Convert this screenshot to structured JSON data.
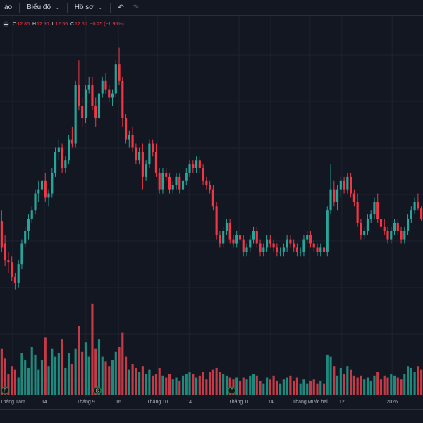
{
  "toolbar": {
    "items": [
      {
        "label": "áo",
        "chevron": false
      },
      {
        "label": "Biểu đồ",
        "chevron": true
      },
      {
        "label": "Hồ sơ",
        "chevron": true
      }
    ],
    "undo_icon": "undo-icon",
    "redo_icon": "redo-icon"
  },
  "legend": {
    "o_key": "O",
    "o_val": "12.85",
    "h_key": "H",
    "h_val": "12.90",
    "l_key": "L",
    "l_val": "12.55",
    "c_key": "C",
    "c_val": "12.60",
    "change": "−0.25 (−1.96%)"
  },
  "colors": {
    "background": "#131722",
    "grid": "#1f2330",
    "up": "#26a69a",
    "down": "#f23645",
    "up_volume": "#1e8a7e",
    "down_volume": "#c43a47",
    "event_badge": "#2e7d32"
  },
  "xaxis_labels": [
    {
      "label": "Tháng Tám",
      "pos": 0.03
    },
    {
      "label": "14",
      "pos": 0.105
    },
    {
      "label": "Tháng 9",
      "pos": 0.203
    },
    {
      "label": "16",
      "pos": 0.28
    },
    {
      "label": "Tháng 10",
      "pos": 0.372
    },
    {
      "label": "14",
      "pos": 0.447
    },
    {
      "label": "Tháng 11",
      "pos": 0.565
    },
    {
      "label": "14",
      "pos": 0.64
    },
    {
      "label": "Tháng Mười hai",
      "pos": 0.733
    },
    {
      "label": "12",
      "pos": 0.808
    },
    {
      "label": "2026",
      "pos": 0.927
    }
  ],
  "event_badges": [
    {
      "letter": "F",
      "pos": 0.012
    },
    {
      "letter": "S",
      "pos": 0.23
    },
    {
      "letter": "F",
      "pos": 0.548
    }
  ],
  "chart_data": {
    "type": "candlestick",
    "price_range": [
      10.2,
      17.3
    ],
    "volume_range": [
      0,
      100
    ],
    "candles": [
      [
        12.55,
        12.8,
        11.8,
        11.9,
        48
      ],
      [
        12.0,
        12.2,
        11.45,
        11.6,
        38
      ],
      [
        11.6,
        11.8,
        11.3,
        11.55,
        22
      ],
      [
        11.55,
        11.7,
        11.1,
        11.2,
        30
      ],
      [
        11.2,
        11.3,
        10.9,
        11.05,
        26
      ],
      [
        11.05,
        11.6,
        10.95,
        11.5,
        18
      ],
      [
        11.5,
        12.1,
        11.4,
        12.0,
        44
      ],
      [
        12.0,
        12.4,
        11.9,
        12.3,
        36
      ],
      [
        12.3,
        12.7,
        12.1,
        12.6,
        28
      ],
      [
        12.6,
        12.9,
        12.5,
        12.8,
        50
      ],
      [
        12.8,
        13.3,
        12.7,
        13.2,
        42
      ],
      [
        13.2,
        13.5,
        13.0,
        13.3,
        26
      ],
      [
        13.3,
        13.6,
        13.1,
        13.5,
        36
      ],
      [
        13.5,
        13.7,
        13.0,
        13.1,
        60
      ],
      [
        13.1,
        13.3,
        12.9,
        13.2,
        30
      ],
      [
        13.2,
        13.8,
        13.1,
        13.7,
        48
      ],
      [
        13.7,
        14.3,
        13.6,
        14.2,
        40
      ],
      [
        14.2,
        14.5,
        14.0,
        14.3,
        44
      ],
      [
        14.3,
        14.4,
        13.7,
        13.8,
        58
      ],
      [
        13.8,
        14.1,
        13.7,
        14.0,
        28
      ],
      [
        14.0,
        14.6,
        13.9,
        14.5,
        44
      ],
      [
        14.5,
        14.8,
        14.3,
        14.4,
        32
      ],
      [
        14.4,
        15.9,
        14.3,
        15.8,
        48
      ],
      [
        15.8,
        16.4,
        15.2,
        15.3,
        72
      ],
      [
        15.3,
        15.5,
        14.8,
        15.0,
        45
      ],
      [
        15.0,
        15.8,
        14.9,
        15.7,
        55
      ],
      [
        15.7,
        16.0,
        15.6,
        15.8,
        40
      ],
      [
        15.8,
        16.0,
        15.2,
        15.3,
        95
      ],
      [
        15.3,
        15.5,
        14.8,
        15.0,
        48
      ],
      [
        15.0,
        15.7,
        14.9,
        15.6,
        58
      ],
      [
        15.6,
        16.0,
        15.5,
        15.9,
        40
      ],
      [
        15.9,
        16.1,
        15.6,
        15.7,
        35
      ],
      [
        15.7,
        15.8,
        15.4,
        15.5,
        30
      ],
      [
        15.5,
        15.7,
        15.3,
        15.6,
        36
      ],
      [
        15.6,
        16.4,
        15.5,
        16.3,
        45
      ],
      [
        16.3,
        16.7,
        15.8,
        15.9,
        50
      ],
      [
        15.9,
        16.0,
        14.8,
        15.0,
        65
      ],
      [
        15.0,
        15.1,
        14.4,
        14.5,
        40
      ],
      [
        14.5,
        14.7,
        14.3,
        14.6,
        26
      ],
      [
        14.6,
        14.8,
        14.2,
        14.3,
        32
      ],
      [
        14.3,
        14.4,
        13.9,
        14.0,
        28
      ],
      [
        14.0,
        14.3,
        13.9,
        14.2,
        24
      ],
      [
        14.2,
        14.4,
        13.3,
        13.6,
        30
      ],
      [
        13.6,
        14.0,
        13.5,
        13.9,
        22
      ],
      [
        13.9,
        14.5,
        13.8,
        14.4,
        26
      ],
      [
        14.4,
        14.5,
        14.1,
        14.2,
        20
      ],
      [
        14.2,
        14.4,
        13.6,
        13.7,
        22
      ],
      [
        13.7,
        13.8,
        13.2,
        13.3,
        28
      ],
      [
        13.3,
        13.8,
        13.2,
        13.7,
        20
      ],
      [
        13.7,
        13.8,
        13.5,
        13.6,
        18
      ],
      [
        13.6,
        13.7,
        13.2,
        13.3,
        22
      ],
      [
        13.3,
        13.5,
        13.2,
        13.4,
        16
      ],
      [
        13.4,
        13.7,
        13.3,
        13.6,
        18
      ],
      [
        13.6,
        13.7,
        13.2,
        13.3,
        14
      ],
      [
        13.3,
        13.6,
        13.2,
        13.5,
        20
      ],
      [
        13.5,
        13.8,
        13.4,
        13.7,
        22
      ],
      [
        13.7,
        14.0,
        13.6,
        13.9,
        24
      ],
      [
        13.9,
        14.0,
        13.7,
        13.8,
        22
      ],
      [
        13.8,
        14.1,
        13.7,
        14.0,
        18
      ],
      [
        14.0,
        14.1,
        13.7,
        13.8,
        20
      ],
      [
        13.8,
        13.9,
        13.4,
        13.5,
        24
      ],
      [
        13.5,
        13.6,
        13.3,
        13.4,
        16
      ],
      [
        13.4,
        13.5,
        13.2,
        13.3,
        24
      ],
      [
        13.3,
        13.4,
        12.8,
        12.9,
        26
      ],
      [
        12.9,
        13.0,
        12.1,
        12.2,
        28
      ],
      [
        12.2,
        12.3,
        11.9,
        12.0,
        24
      ],
      [
        12.0,
        12.4,
        11.9,
        12.3,
        22
      ],
      [
        12.3,
        12.6,
        12.2,
        12.5,
        20
      ],
      [
        12.5,
        12.6,
        12.0,
        12.1,
        18
      ],
      [
        12.1,
        12.2,
        11.9,
        12.0,
        16
      ],
      [
        12.0,
        12.3,
        11.9,
        12.2,
        18
      ],
      [
        12.2,
        12.4,
        12.0,
        12.1,
        14
      ],
      [
        12.1,
        12.2,
        11.7,
        11.8,
        18
      ],
      [
        11.8,
        12.0,
        11.7,
        11.9,
        16
      ],
      [
        11.9,
        12.2,
        11.8,
        12.1,
        20
      ],
      [
        12.1,
        12.4,
        12.0,
        12.3,
        22
      ],
      [
        12.3,
        12.4,
        11.9,
        12.0,
        20
      ],
      [
        12.0,
        12.1,
        11.7,
        11.8,
        14
      ],
      [
        11.8,
        12.0,
        11.7,
        11.9,
        12
      ],
      [
        11.9,
        12.2,
        11.8,
        12.1,
        18
      ],
      [
        12.1,
        12.2,
        11.9,
        12.0,
        16
      ],
      [
        12.0,
        12.1,
        11.8,
        11.9,
        20
      ],
      [
        11.9,
        12.0,
        11.7,
        11.8,
        14
      ],
      [
        11.8,
        11.9,
        11.7,
        11.8,
        12
      ],
      [
        11.8,
        12.0,
        11.7,
        11.9,
        16
      ],
      [
        11.9,
        12.2,
        11.8,
        12.1,
        18
      ],
      [
        12.1,
        12.2,
        11.9,
        12.0,
        20
      ],
      [
        12.0,
        12.1,
        11.8,
        11.9,
        14
      ],
      [
        11.9,
        12.0,
        11.7,
        11.8,
        18
      ],
      [
        11.8,
        11.9,
        11.7,
        11.8,
        12
      ],
      [
        11.8,
        12.2,
        11.7,
        12.1,
        16
      ],
      [
        12.1,
        12.3,
        12.0,
        12.2,
        12
      ],
      [
        12.2,
        12.3,
        11.9,
        12.0,
        14
      ],
      [
        12.0,
        12.1,
        11.8,
        11.9,
        16
      ],
      [
        11.9,
        12.0,
        11.7,
        11.8,
        12
      ],
      [
        11.8,
        12.0,
        11.7,
        11.9,
        14
      ],
      [
        11.9,
        12.1,
        11.8,
        11.8,
        12
      ],
      [
        11.8,
        12.9,
        11.7,
        12.8,
        42
      ],
      [
        12.8,
        13.9,
        12.7,
        13.3,
        40
      ],
      [
        13.3,
        13.5,
        12.9,
        13.0,
        30
      ],
      [
        13.0,
        13.4,
        12.8,
        13.3,
        20
      ],
      [
        13.3,
        13.6,
        13.1,
        13.5,
        28
      ],
      [
        13.5,
        13.6,
        13.2,
        13.3,
        22
      ],
      [
        13.3,
        13.7,
        13.2,
        13.6,
        30
      ],
      [
        13.6,
        13.7,
        13.1,
        13.2,
        26
      ],
      [
        13.2,
        13.3,
        12.9,
        13.0,
        20
      ],
      [
        13.0,
        13.2,
        12.4,
        12.5,
        18
      ],
      [
        12.5,
        12.6,
        12.1,
        12.2,
        20
      ],
      [
        12.2,
        12.4,
        12.1,
        12.3,
        16
      ],
      [
        12.3,
        12.7,
        12.2,
        12.6,
        18
      ],
      [
        12.6,
        12.8,
        12.5,
        12.7,
        14
      ],
      [
        12.7,
        13.1,
        12.6,
        13.0,
        20
      ],
      [
        13.0,
        13.2,
        12.5,
        12.6,
        24
      ],
      [
        12.6,
        12.7,
        12.3,
        12.4,
        16
      ],
      [
        12.4,
        12.6,
        12.2,
        12.3,
        20
      ],
      [
        12.3,
        12.4,
        12.0,
        12.1,
        18
      ],
      [
        12.1,
        12.4,
        12.0,
        12.3,
        22
      ],
      [
        12.3,
        12.6,
        12.2,
        12.5,
        20
      ],
      [
        12.5,
        12.6,
        12.2,
        12.3,
        18
      ],
      [
        12.3,
        12.4,
        12.0,
        12.1,
        16
      ],
      [
        12.1,
        12.4,
        12.0,
        12.3,
        22
      ],
      [
        12.3,
        12.7,
        12.2,
        12.6,
        30
      ],
      [
        12.6,
        12.9,
        12.5,
        12.8,
        28
      ],
      [
        12.8,
        13.1,
        12.7,
        13.0,
        24
      ],
      [
        13.0,
        13.2,
        12.8,
        12.85,
        30
      ],
      [
        12.85,
        12.9,
        12.55,
        12.6,
        26
      ]
    ]
  }
}
